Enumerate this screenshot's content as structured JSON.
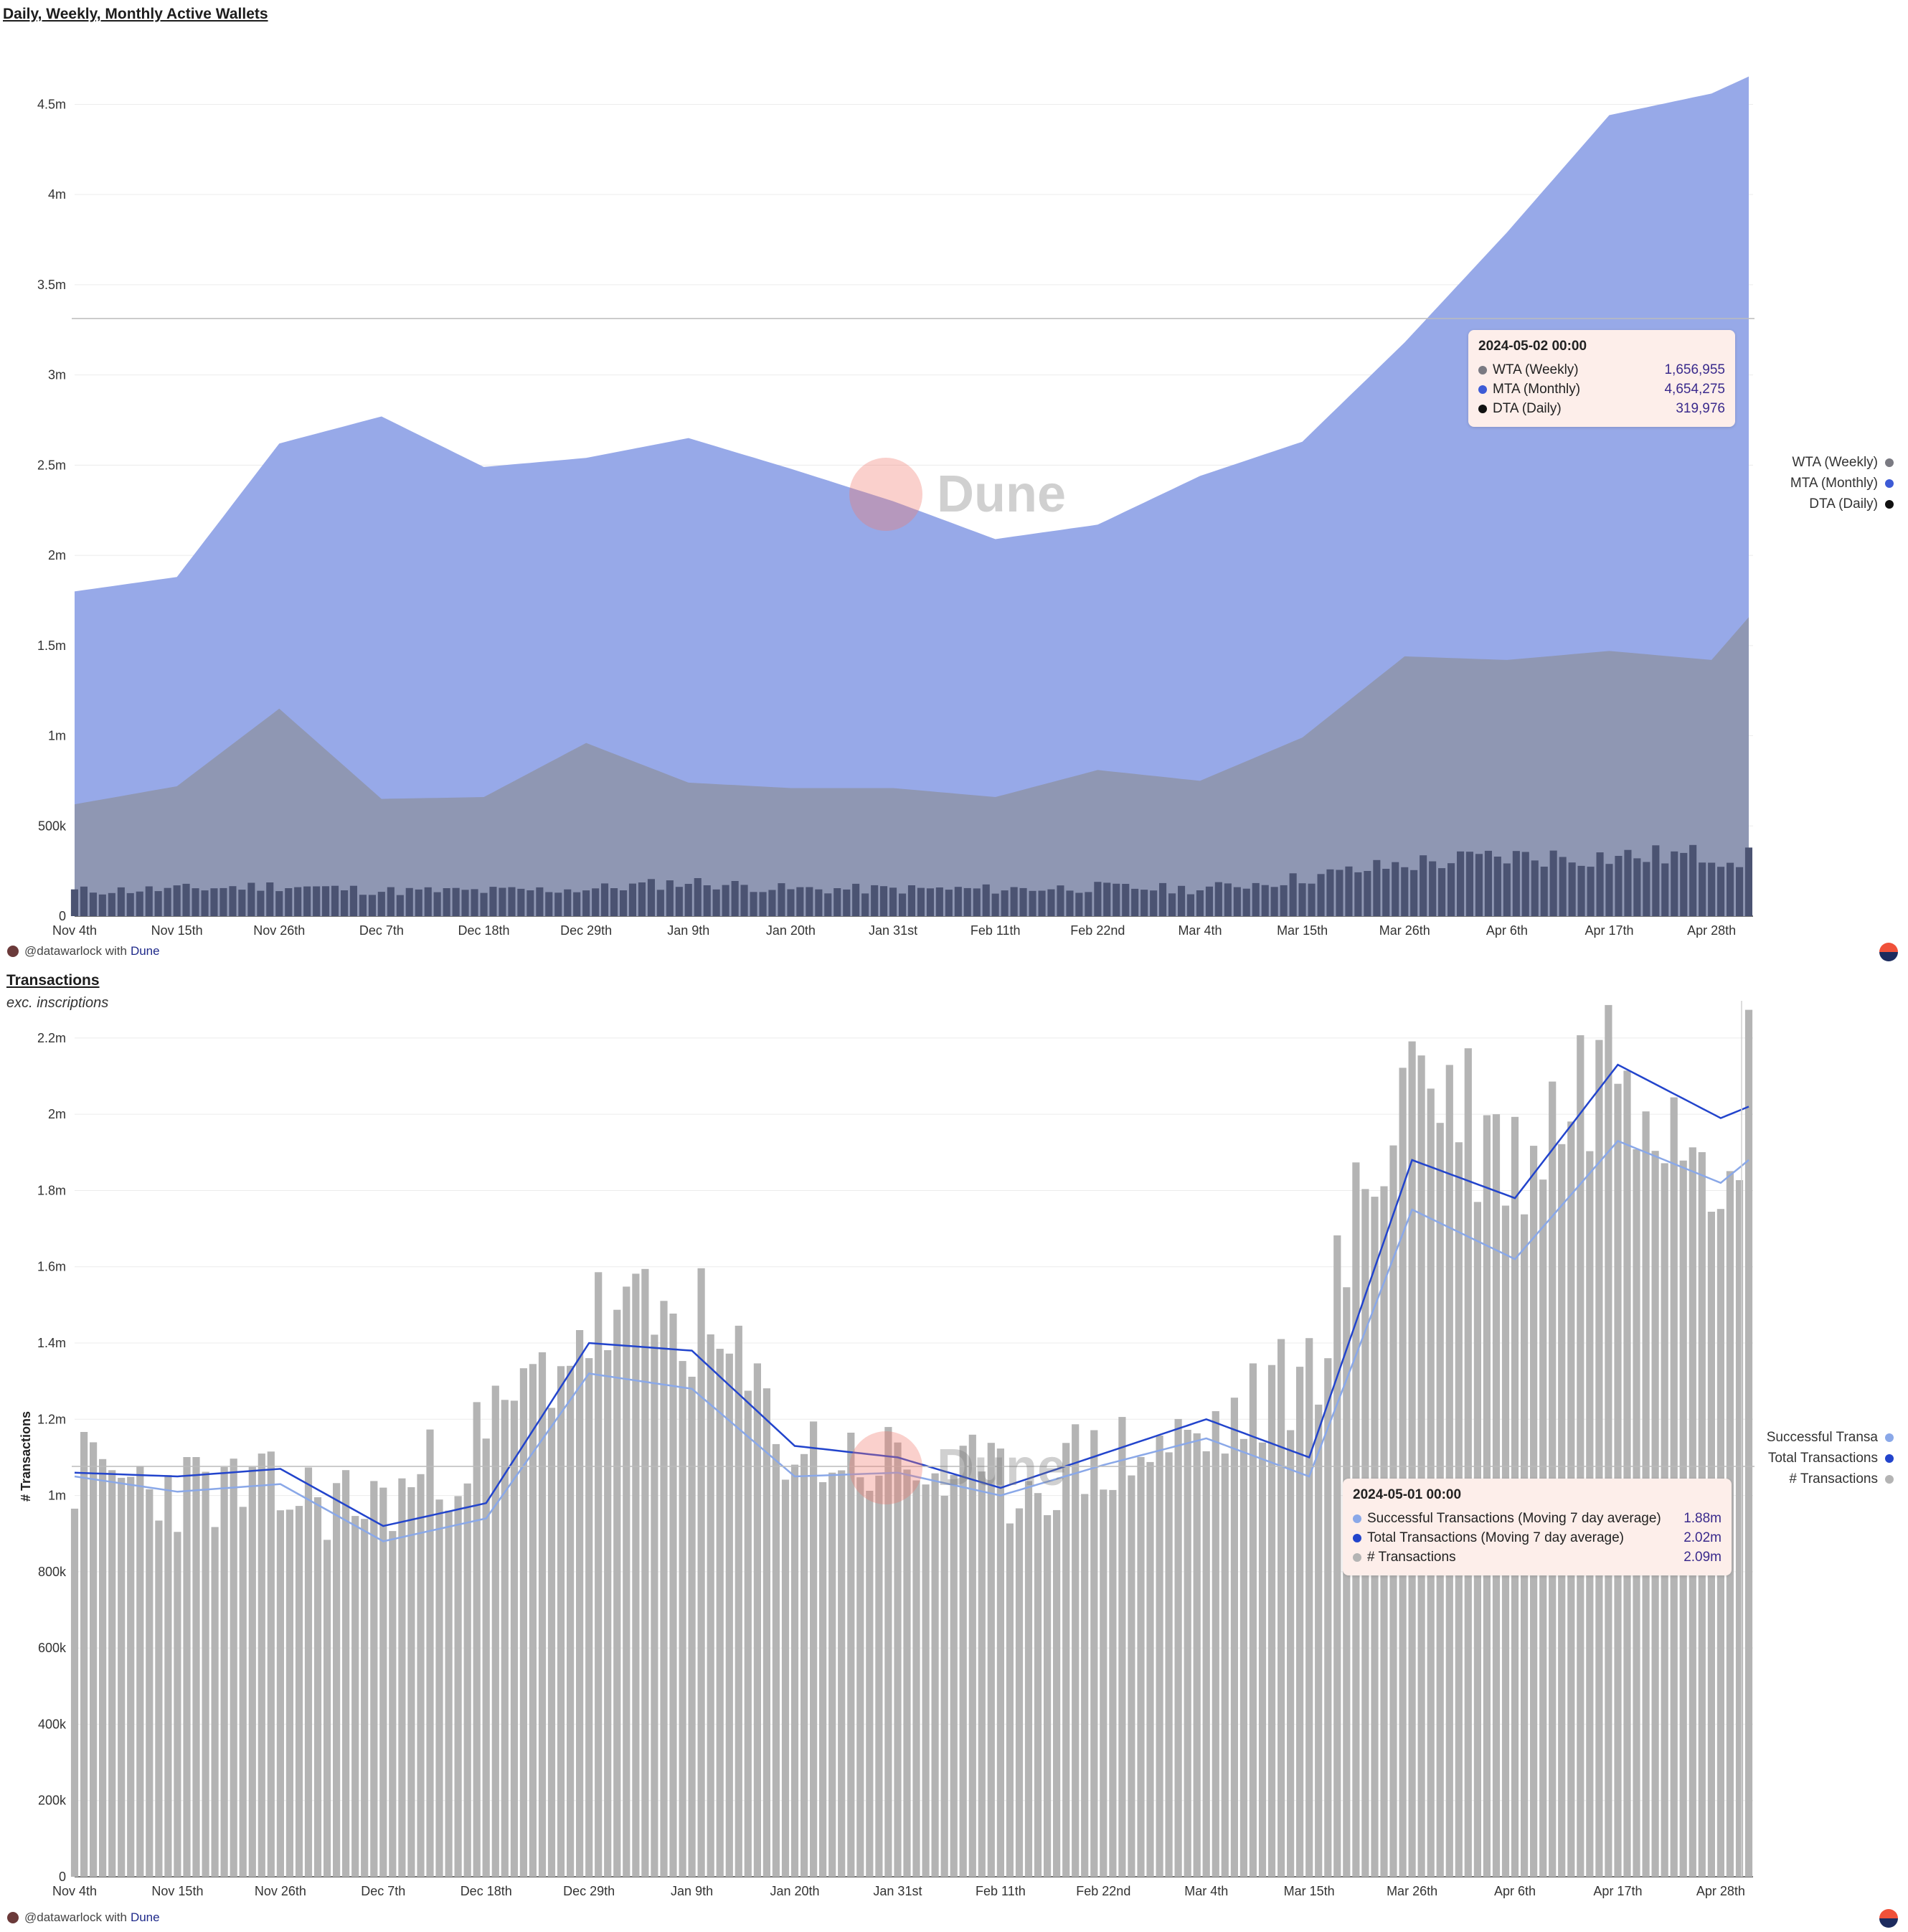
{
  "panels": {
    "wallets": {
      "title": "Daily, Weekly, Monthly Active Wallets",
      "y_ticks": [
        "0",
        "500k",
        "1m",
        "1.5m",
        "2m",
        "2.5m",
        "3m",
        "3.5m",
        "4m",
        "4.5m"
      ],
      "x_ticks": [
        "Nov 4th",
        "Nov 15th",
        "Nov 26th",
        "Dec 7th",
        "Dec 18th",
        "Dec 29th",
        "Jan 9th",
        "Jan 20th",
        "Jan 31st",
        "Feb 11th",
        "Feb 22nd",
        "Mar 4th",
        "Mar 15th",
        "Mar 26th",
        "Apr 6th",
        "Apr 17th",
        "Apr 28th"
      ],
      "legend": [
        {
          "label": "WTA (Weekly)",
          "color": "#7a7a82"
        },
        {
          "label": "MTA (Monthly)",
          "color": "#3d5bd6"
        },
        {
          "label": "DTA (Daily)",
          "color": "#111111"
        }
      ],
      "tooltip": {
        "title": "2024-05-02 00:00",
        "rows": [
          {
            "label": "WTA (Weekly)",
            "value": "1,656,955",
            "color": "#7a7a82"
          },
          {
            "label": "MTA (Monthly)",
            "value": "4,654,275",
            "color": "#3d5bd6"
          },
          {
            "label": "DTA (Daily)",
            "value": "319,976",
            "color": "#111111"
          }
        ]
      },
      "credit_user": "@datawarlock with",
      "credit_brand": "Dune",
      "watermark": "Dune"
    },
    "transactions": {
      "title": "Transactions",
      "subtitle": "exc. inscriptions",
      "ylabel": "# Transactions",
      "y_ticks": [
        "0",
        "200k",
        "400k",
        "600k",
        "800k",
        "1m",
        "1.2m",
        "1.4m",
        "1.6m",
        "1.8m",
        "2m",
        "2.2m"
      ],
      "x_ticks": [
        "Nov 4th",
        "Nov 15th",
        "Nov 26th",
        "Dec 7th",
        "Dec 18th",
        "Dec 29th",
        "Jan 9th",
        "Jan 20th",
        "Jan 31st",
        "Feb 11th",
        "Feb 22nd",
        "Mar 4th",
        "Mar 15th",
        "Mar 26th",
        "Apr 6th",
        "Apr 17th",
        "Apr 28th"
      ],
      "legend": [
        {
          "label": "Successful Transa",
          "color": "#8aa8e8"
        },
        {
          "label": "Total Transactions",
          "color": "#2244cc"
        },
        {
          "label": "# Transactions",
          "color": "#b4b4b4"
        }
      ],
      "tooltip": {
        "title": "2024-05-01 00:00",
        "rows": [
          {
            "label": "Successful Transactions (Moving 7 day average)",
            "value": "1.88m",
            "color": "#8aa8e8"
          },
          {
            "label": "Total Transactions (Moving 7 day average)",
            "value": "2.02m",
            "color": "#2244cc"
          },
          {
            "label": "# Transactions",
            "value": "2.09m",
            "color": "#b4b4b4"
          }
        ]
      },
      "credit_user": "@datawarlock with",
      "credit_brand": "Dune",
      "watermark": "Dune"
    }
  },
  "chart_data": [
    {
      "type": "area",
      "title": "Daily, Weekly, Monthly Active Wallets",
      "x_range": [
        "2023-11-04",
        "2024-05-02"
      ],
      "ylim": [
        0,
        4800000
      ],
      "grid": true,
      "legend_position": "right",
      "x": [
        "2023-11-04",
        "2023-11-15",
        "2023-11-26",
        "2023-12-07",
        "2023-12-18",
        "2023-12-29",
        "2024-01-09",
        "2024-01-20",
        "2024-01-31",
        "2024-02-11",
        "2024-02-22",
        "2024-03-04",
        "2024-03-15",
        "2024-03-26",
        "2024-04-06",
        "2024-04-17",
        "2024-04-28",
        "2024-05-02"
      ],
      "series": [
        {
          "name": "MTA (Monthly)",
          "values": [
            1800000,
            1880000,
            2620000,
            2770000,
            2490000,
            2540000,
            2650000,
            2480000,
            2300000,
            2090000,
            2170000,
            2440000,
            2630000,
            3180000,
            3790000,
            4440000,
            4560000,
            4654275
          ]
        },
        {
          "name": "WTA (Weekly)",
          "values": [
            620000,
            720000,
            1150000,
            650000,
            660000,
            960000,
            740000,
            710000,
            710000,
            660000,
            810000,
            750000,
            990000,
            1440000,
            1420000,
            1470000,
            1420000,
            1656955
          ]
        },
        {
          "name": "DTA (Daily)",
          "values": [
            140000,
            150000,
            170000,
            140000,
            140000,
            150000,
            190000,
            150000,
            150000,
            150000,
            160000,
            150000,
            210000,
            290000,
            330000,
            330000,
            340000,
            319976
          ]
        }
      ]
    },
    {
      "type": "bar",
      "title": "Transactions",
      "subtitle": "exc. inscriptions",
      "ylabel": "# Transactions",
      "x_range": [
        "2023-11-04",
        "2024-05-01"
      ],
      "ylim": [
        0,
        2260000
      ],
      "grid": true,
      "legend_position": "right",
      "x": [
        "2023-11-04",
        "2023-11-15",
        "2023-11-26",
        "2023-12-07",
        "2023-12-18",
        "2023-12-29",
        "2024-01-09",
        "2024-01-20",
        "2024-01-31",
        "2024-02-11",
        "2024-02-22",
        "2024-03-04",
        "2024-03-15",
        "2024-03-26",
        "2024-04-06",
        "2024-04-17",
        "2024-04-28",
        "2024-05-01"
      ],
      "series": [
        {
          "name": "# Transactions",
          "values": [
            1060000,
            1020000,
            1000000,
            980000,
            1150000,
            1450000,
            1460000,
            1120000,
            1080000,
            1020000,
            1100000,
            1150000,
            1320000,
            2160000,
            1870000,
            2200000,
            1950000,
            2090000
          ]
        },
        {
          "name": "Total Transactions (Moving 7 day average)",
          "values": [
            1060000,
            1050000,
            1070000,
            920000,
            980000,
            1400000,
            1380000,
            1130000,
            1100000,
            1020000,
            1110000,
            1200000,
            1100000,
            1880000,
            1780000,
            2130000,
            1990000,
            2020000
          ]
        },
        {
          "name": "Successful Transactions (Moving 7 day average)",
          "values": [
            1050000,
            1010000,
            1030000,
            880000,
            940000,
            1320000,
            1280000,
            1050000,
            1060000,
            1000000,
            1080000,
            1150000,
            1050000,
            1750000,
            1620000,
            1930000,
            1820000,
            1880000
          ]
        }
      ]
    }
  ]
}
